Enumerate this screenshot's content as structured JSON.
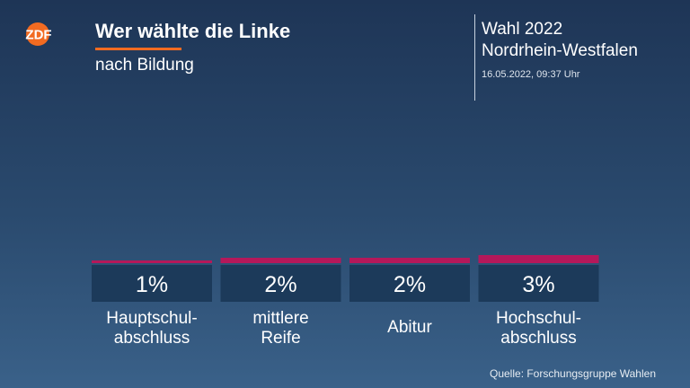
{
  "brand": {
    "logo_text": "ZDF",
    "accent": "#f26b21"
  },
  "header": {
    "title": "Wer wählte die Linke",
    "subtitle": "nach Bildung"
  },
  "election": {
    "line1": "Wahl 2022",
    "line2": "Nordrhein-Westfalen",
    "timestamp": "16.05.2022, 09:37 Uhr"
  },
  "chart_data": {
    "type": "bar",
    "title": "Wer wählte die Linke",
    "subtitle": "nach Bildung",
    "categories": [
      [
        "Hauptschul-",
        "abschluss"
      ],
      [
        "mittlere",
        "Reife"
      ],
      [
        "Abitur"
      ],
      [
        "Hochschul-",
        "abschluss"
      ]
    ],
    "values": [
      1,
      2,
      2,
      3
    ],
    "value_labels": [
      "1%",
      "2%",
      "2%",
      "3%"
    ],
    "unit": "%",
    "bar_color": "#b5185a",
    "label_box_color": "#1c3a5a",
    "grid": false,
    "legend": "none"
  },
  "footer": {
    "source": "Quelle: Forschungsgruppe Wahlen"
  }
}
